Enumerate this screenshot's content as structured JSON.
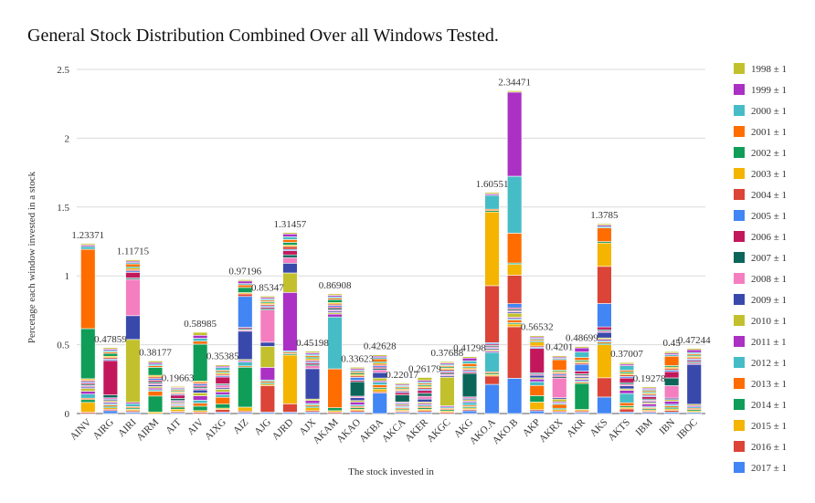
{
  "chart_data": {
    "type": "bar",
    "stacked": true,
    "title": "General Stock Distribution Combined Over all Windows Tested.",
    "xlabel": "The stock invested in",
    "ylabel": "Percetage each window invested in a stock",
    "ylim": [
      0,
      2.5
    ],
    "yticks": [
      "0",
      "0.5",
      "1",
      "1.5",
      "2",
      "2.5"
    ],
    "grid": true,
    "legend_position": "right",
    "categories": [
      "AINV",
      "AIRG",
      "AIRI",
      "AIRM",
      "AIT",
      "AIV",
      "AIXG",
      "AIZ",
      "AJG",
      "AJRD",
      "AJX",
      "AKAM",
      "AKAO",
      "AKBA",
      "AKCA",
      "AKER",
      "AKGC",
      "AKG",
      "AKO.A",
      "AKO.B",
      "AKP",
      "AKRX",
      "AKR",
      "AKS",
      "AKTS",
      "IBM",
      "IBN",
      "IBOC"
    ],
    "totals": [
      1.23371,
      0.47859,
      1.11715,
      0.38177,
      0.19663,
      0.58985,
      0.35385,
      0.97196,
      0.85347,
      1.31457,
      0.45198,
      0.86908,
      0.33623,
      0.42628,
      0.22017,
      0.26179,
      0.37688,
      0.41298,
      1.60551,
      2.34471,
      0.56532,
      0.4201,
      0.48699,
      1.3785,
      0.37007,
      0.19278,
      0.45,
      0.47244
    ],
    "total_labels": [
      "1.23371",
      "0.47859",
      "1.11715",
      "0.38177",
      "0.19663",
      "0.58985",
      "0.35385",
      "0.97196",
      "0.85347",
      "1.31457",
      "0.45198",
      "0.86908",
      "0.33623",
      "0.42628",
      "0.22017",
      "0.26179",
      "0.37688",
      "0.41298",
      "1.60551",
      "2.34471",
      "0.56532",
      "0.4201",
      "0.48699",
      "1.3785",
      "0.37007",
      "0.19278",
      "0.45",
      "0.47244"
    ],
    "series": [
      {
        "name": "2017 ± 1",
        "color": "#4285f4",
        "values": [
          0,
          0.02,
          0.01,
          0,
          0.01,
          0,
          0.01,
          0.01,
          0.01,
          0.01,
          0.01,
          0,
          0.01,
          0.15,
          0.01,
          0.01,
          0,
          0.02,
          0.21,
          0.26,
          0.02,
          0.01,
          0.01,
          0.12,
          0.01,
          0.01,
          0.01,
          0.01
        ]
      },
      {
        "name": "2016 ± 1",
        "color": "#db4437",
        "values": [
          0.01,
          0.01,
          0.01,
          0,
          0.01,
          0.01,
          0.02,
          0.01,
          0.19,
          0.06,
          0.01,
          0.01,
          0.01,
          0.01,
          0.01,
          0.01,
          0.01,
          0.01,
          0.06,
          0.38,
          0.01,
          0.01,
          0.01,
          0.14,
          0.02,
          0.01,
          0.01,
          0
        ]
      },
      {
        "name": "2015 ± 1",
        "color": "#f4b400",
        "values": [
          0.07,
          0.01,
          0.01,
          0.01,
          0.02,
          0.01,
          0.01,
          0.03,
          0.01,
          0.35,
          0.02,
          0.01,
          0.01,
          0.02,
          0.01,
          0.01,
          0.01,
          0.01,
          0.01,
          0.02,
          0.06,
          0.01,
          0.01,
          0.24,
          0.01,
          0.01,
          0.01,
          0.01
        ]
      },
      {
        "name": "2014 ± 1",
        "color": "#0f9d58",
        "values": [
          0.02,
          0.01,
          0.01,
          0.1,
          0.02,
          0.03,
          0.03,
          0.31,
          0.01,
          0.01,
          0.01,
          0.02,
          0.01,
          0.01,
          0.01,
          0.01,
          0.01,
          0.01,
          0.01,
          0.01,
          0.05,
          0.01,
          0.19,
          0.01,
          0.01,
          0.01,
          0.01,
          0.01
        ]
      },
      {
        "name": "2013 ± 1",
        "color": "#ff6d00",
        "values": [
          0.01,
          0.01,
          0.01,
          0.03,
          0.01,
          0.02,
          0.05,
          0.01,
          0.01,
          0.01,
          0.01,
          0.27,
          0.01,
          0.02,
          0.01,
          0.01,
          0.01,
          0.01,
          0.01,
          0.02,
          0.08,
          0.03,
          0.01,
          0.01,
          0.02,
          0.01,
          0.01,
          0.01
        ]
      },
      {
        "name": "2012 ± 1",
        "color": "#46bdc6",
        "values": [
          0.03,
          0.01,
          0.02,
          0.01,
          0.01,
          0.02,
          0.02,
          0.03,
          0.01,
          0.01,
          0.01,
          0.36,
          0.01,
          0.02,
          0.01,
          0.01,
          0.01,
          0.02,
          0.14,
          0.01,
          0.03,
          0.01,
          0.01,
          0.01,
          0.06,
          0.01,
          0.01,
          0.01
        ]
      },
      {
        "name": "2011 ± 1",
        "color": "#ab30c4",
        "values": [
          0.02,
          0.01,
          0.01,
          0.01,
          0.01,
          0.03,
          0.02,
          0.01,
          0.09,
          0.42,
          0.02,
          0.02,
          0.02,
          0.01,
          0.01,
          0.01,
          0.01,
          0.01,
          0.01,
          0.01,
          0.02,
          0.01,
          0.01,
          0.01,
          0.02,
          0.02,
          0.02,
          0.01
        ]
      },
      {
        "name": "2010 ± 1",
        "color": "#c2c12d",
        "values": [
          0.02,
          0.01,
          0.45,
          0.01,
          0.01,
          0.02,
          0.02,
          0.01,
          0.15,
          0.14,
          0.01,
          0.01,
          0.01,
          0.02,
          0.01,
          0.01,
          0.22,
          0.01,
          0.01,
          0.03,
          0.01,
          0.02,
          0.01,
          0.01,
          0.01,
          0.01,
          0.01,
          0.01
        ]
      },
      {
        "name": "2009 ± 1",
        "color": "#3949ab",
        "values": [
          0.01,
          0.01,
          0.17,
          0.01,
          0.01,
          0.02,
          0.01,
          0.22,
          0.03,
          0.07,
          0.21,
          0.01,
          0.02,
          0.04,
          0.01,
          0.02,
          0.01,
          0.01,
          0.01,
          0.01,
          0.02,
          0.01,
          0.01,
          0.04,
          0.02,
          0.01,
          0.01,
          0.3
        ]
      },
      {
        "name": "2008 ± 1",
        "color": "#f47ec0",
        "values": [
          0.01,
          0.01,
          0.26,
          0.01,
          0.01,
          0.01,
          0.02,
          0.01,
          0.23,
          0.04,
          0.02,
          0.01,
          0.01,
          0.02,
          0.01,
          0.02,
          0.01,
          0.01,
          0.01,
          0.01,
          0.01,
          0.15,
          0.01,
          0.01,
          0.01,
          0.01,
          0.08,
          0.01
        ]
      },
      {
        "name": "2007 ± 1",
        "color": "#0b6659",
        "values": [
          0.01,
          0.02,
          0.01,
          0.01,
          0.02,
          0.01,
          0.01,
          0.01,
          0.01,
          0.02,
          0.01,
          0.01,
          0.1,
          0.01,
          0.06,
          0.02,
          0.01,
          0.17,
          0.01,
          0.01,
          0.01,
          0.01,
          0.01,
          0.01,
          0.01,
          0.01,
          0.05,
          0.01
        ]
      },
      {
        "name": "2006 ± 1",
        "color": "#c2185b",
        "values": [
          0.01,
          0.24,
          0.04,
          0.01,
          0.03,
          0.01,
          0.05,
          0.01,
          0.01,
          0.03,
          0.01,
          0.01,
          0.01,
          0.01,
          0.02,
          0.02,
          0.01,
          0.01,
          0.01,
          0.01,
          0.19,
          0.01,
          0.02,
          0.02,
          0.03,
          0.02,
          0.04,
          0.01
        ]
      },
      {
        "name": "2005 ± 1",
        "color": "#4285f4",
        "values": [
          0.01,
          0.01,
          0.01,
          0.01,
          0.01,
          0.01,
          0.01,
          0.24,
          0.01,
          0.01,
          0.01,
          0.01,
          0.02,
          0.01,
          0.01,
          0.01,
          0.01,
          0.01,
          0.01,
          0.03,
          0.01,
          0.01,
          0.05,
          0.17,
          0.01,
          0.01,
          0.01,
          0.01
        ]
      },
      {
        "name": "2004 ± 1",
        "color": "#db4437",
        "values": [
          0.01,
          0.01,
          0.01,
          0.01,
          0.01,
          0.01,
          0.01,
          0.02,
          0.01,
          0.02,
          0.01,
          0.01,
          0.01,
          0.01,
          0.01,
          0.01,
          0.01,
          0.01,
          0.41,
          0.21,
          0.01,
          0.01,
          0.01,
          0.27,
          0.01,
          0.01,
          0.01,
          0.01
        ]
      },
      {
        "name": "2003 ± 1",
        "color": "#f4b400",
        "values": [
          0.01,
          0.01,
          0.01,
          0.01,
          0.01,
          0.01,
          0.01,
          0.01,
          0.01,
          0.01,
          0.01,
          0.01,
          0.01,
          0.01,
          0.01,
          0.01,
          0.01,
          0.01,
          0.53,
          0.08,
          0.03,
          0.01,
          0.01,
          0.17,
          0.01,
          0.01,
          0.01,
          0.01
        ]
      },
      {
        "name": "2002 ± 1",
        "color": "#0f9d58",
        "values": [
          0.36,
          0.02,
          0.01,
          0.05,
          0.01,
          0.25,
          0.01,
          0.04,
          0.01,
          0.02,
          0.01,
          0.02,
          0.01,
          0.01,
          0.01,
          0.01,
          0.01,
          0.01,
          0.01,
          0.01,
          0.01,
          0.01,
          0.01,
          0.01,
          0.01,
          0.01,
          0.01,
          0.01
        ]
      },
      {
        "name": "2001 ± 1",
        "color": "#ff6d00",
        "values": [
          0.57,
          0.01,
          0.02,
          0.01,
          0.01,
          0.02,
          0.01,
          0.02,
          0.01,
          0.02,
          0.01,
          0.01,
          0.01,
          0.02,
          0.01,
          0.01,
          0.01,
          0.02,
          0.01,
          0.22,
          0.01,
          0.08,
          0.02,
          0.1,
          0.01,
          0.01,
          0.06,
          0.01
        ]
      },
      {
        "name": "2000 ± 1",
        "color": "#46bdc6",
        "values": [
          0.02,
          0.01,
          0.01,
          0.01,
          0.01,
          0.02,
          0.02,
          0.01,
          0.01,
          0.02,
          0.01,
          0.01,
          0.01,
          0.01,
          0.01,
          0.01,
          0.01,
          0.02,
          0.1,
          0.42,
          0.01,
          0.01,
          0.04,
          0.01,
          0.03,
          0.01,
          0.01,
          0.01
        ]
      },
      {
        "name": "1999 ± 1",
        "color": "#ab30c4",
        "values": [
          0.01,
          0.01,
          0.01,
          0.01,
          0.01,
          0.02,
          0.01,
          0.02,
          0.01,
          0.02,
          0.01,
          0.01,
          0.01,
          0.01,
          0.01,
          0.01,
          0.01,
          0.02,
          0.01,
          0.62,
          0.01,
          0.01,
          0.03,
          0.01,
          0.01,
          0.01,
          0.01,
          0.02
        ]
      },
      {
        "name": "1998 ± 1",
        "color": "#c2c12d",
        "values": [
          0.01,
          0.01,
          0.01,
          0.01,
          0.01,
          0.02,
          0.01,
          0.01,
          0.01,
          0.01,
          0.01,
          0.01,
          0.01,
          0.01,
          0.01,
          0.02,
          0.01,
          0.01,
          0.01,
          0.01,
          0.01,
          0.01,
          0.01,
          0.01,
          0.01,
          0.01,
          0.01,
          0.01
        ]
      }
    ]
  }
}
